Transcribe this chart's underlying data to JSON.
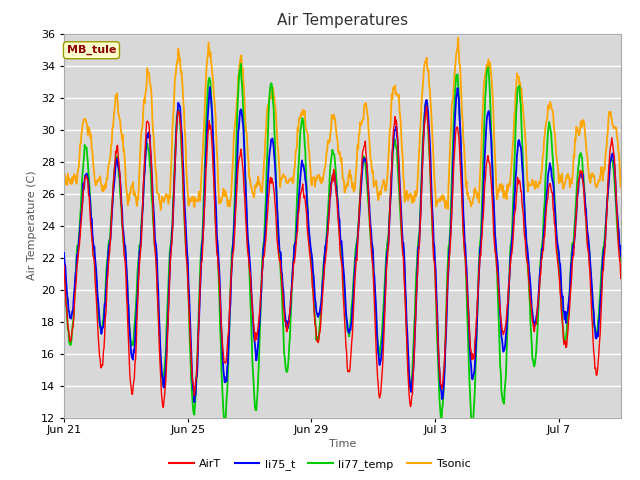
{
  "title": "Air Temperatures",
  "xlabel": "Time",
  "ylabel": "Air Temperature (C)",
  "ylim": [
    12,
    36
  ],
  "yticks": [
    12,
    14,
    16,
    18,
    20,
    22,
    24,
    26,
    28,
    30,
    32,
    34,
    36
  ],
  "annotation_text": "MB_tule",
  "annotation_color": "#8B0000",
  "annotation_bg": "#FFFFCC",
  "annotation_border": "#999900",
  "figure_bg": "#FFFFFF",
  "plot_bg": "#D8D8D8",
  "grid_color": "#FFFFFF",
  "series_colors": {
    "AirT": "#FF0000",
    "li75_t": "#0000FF",
    "li77_temp": "#00CC00",
    "Tsonic": "#FFA500"
  },
  "series_linewidths": {
    "AirT": 1.0,
    "li75_t": 1.3,
    "li77_temp": 1.3,
    "Tsonic": 1.3
  },
  "xtick_dates": [
    "Jun 21",
    "Jun 25",
    "Jun 29",
    "Jul 3",
    "Jul 7"
  ],
  "xtick_values": [
    0,
    4,
    8,
    12,
    16
  ],
  "n_days": 18,
  "samples_per_day": 48
}
